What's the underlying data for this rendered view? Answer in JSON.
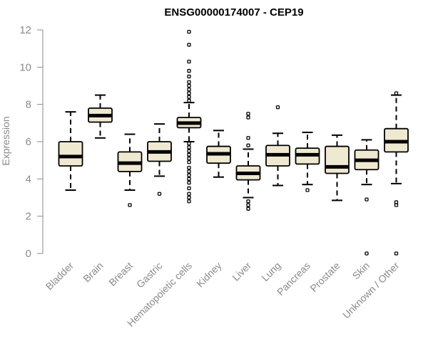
{
  "chart_data": {
    "type": "box",
    "title": "ENSG00000174007 - CEP19",
    "ylabel": "Expression",
    "ylim": [
      0,
      12
    ],
    "yticks": [
      0,
      2,
      4,
      6,
      8,
      10,
      12
    ],
    "box_fill": "#f0e9d2",
    "categories": [
      "Bladder",
      "Brain",
      "Breast",
      "Gastric",
      "Hematopoietic cells",
      "Kidney",
      "Liver",
      "Lung",
      "Pancreas",
      "Prostate",
      "Skin",
      "Unknown / Other"
    ],
    "boxes": [
      {
        "q1": 4.7,
        "median": 5.2,
        "q3": 6.0,
        "lower": 3.4,
        "upper": 7.6,
        "outliers": []
      },
      {
        "q1": 7.05,
        "median": 7.4,
        "q3": 7.8,
        "lower": 6.2,
        "upper": 8.5,
        "outliers": []
      },
      {
        "q1": 4.4,
        "median": 4.85,
        "q3": 5.45,
        "lower": 3.4,
        "upper": 6.4,
        "outliers": [
          2.6
        ]
      },
      {
        "q1": 4.95,
        "median": 5.45,
        "q3": 6.0,
        "lower": 4.15,
        "upper": 6.95,
        "outliers": [
          3.2
        ]
      },
      {
        "q1": 6.75,
        "median": 7.0,
        "q3": 7.3,
        "lower": 6.0,
        "upper": 8.1,
        "outliers": [
          11.9,
          11.2,
          10.3,
          9.8,
          9.5,
          9.2,
          9.0,
          8.8,
          8.6,
          8.4,
          8.2,
          5.9,
          5.7,
          5.5,
          5.3,
          5.1,
          4.9,
          4.6,
          4.4,
          4.2,
          4.0,
          3.8,
          3.5,
          3.2,
          3.0,
          2.8
        ]
      },
      {
        "q1": 4.85,
        "median": 5.35,
        "q3": 5.75,
        "lower": 4.1,
        "upper": 6.6,
        "outliers": []
      },
      {
        "q1": 3.95,
        "median": 4.3,
        "q3": 4.7,
        "lower": 3.0,
        "upper": 5.6,
        "outliers": [
          7.5,
          7.3,
          6.2,
          5.8,
          2.8,
          2.6,
          2.4
        ]
      },
      {
        "q1": 4.7,
        "median": 5.3,
        "q3": 5.8,
        "lower": 3.65,
        "upper": 6.45,
        "outliers": [
          7.85
        ]
      },
      {
        "q1": 4.8,
        "median": 5.3,
        "q3": 5.65,
        "lower": 3.7,
        "upper": 6.5,
        "outliers": [
          3.4
        ]
      },
      {
        "q1": 4.3,
        "median": 4.65,
        "q3": 5.75,
        "lower": 2.85,
        "upper": 6.35,
        "outliers": []
      },
      {
        "q1": 4.5,
        "median": 5.0,
        "q3": 5.55,
        "lower": 3.7,
        "upper": 6.1,
        "outliers": [
          2.9,
          0.0
        ]
      },
      {
        "q1": 5.45,
        "median": 6.0,
        "q3": 6.7,
        "lower": 3.75,
        "upper": 8.5,
        "outliers": [
          8.6,
          2.75,
          2.6,
          0.0
        ]
      }
    ]
  }
}
